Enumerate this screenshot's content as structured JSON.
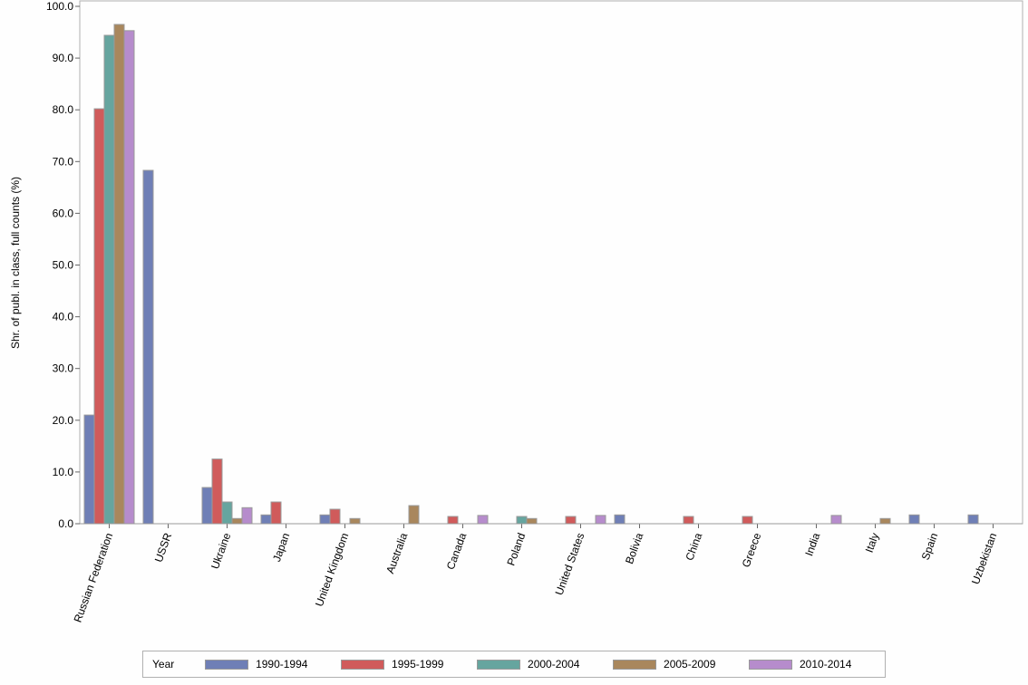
{
  "chart_data": {
    "type": "bar",
    "title": "",
    "xlabel": "",
    "ylabel": "Shr. of publ. in class, full counts (%)",
    "ylim": [
      0,
      100
    ],
    "yticks": [
      "0.0",
      "10.0",
      "20.0",
      "30.0",
      "40.0",
      "50.0",
      "60.0",
      "70.0",
      "80.0",
      "90.0",
      "100.0"
    ],
    "categories": [
      "Russian Federation",
      "USSR",
      "Ukraine",
      "Japan",
      "United Kingdom",
      "Australia",
      "Canada",
      "Poland",
      "United States",
      "Bolivia",
      "China",
      "Greece",
      "India",
      "Italy",
      "Spain",
      "Uzbekistan"
    ],
    "legend_title": "Year",
    "legend_position": "bottom",
    "series": [
      {
        "name": "1990-1994",
        "color": "#6f7fb6",
        "values": [
          21.0,
          68.3,
          7.0,
          1.7,
          1.7,
          0,
          0,
          0,
          0,
          1.7,
          0,
          0,
          0,
          0,
          1.7,
          1.7
        ]
      },
      {
        "name": "1995-1999",
        "color": "#d05b5b",
        "values": [
          80.2,
          0,
          12.5,
          4.2,
          2.8,
          0,
          1.4,
          0,
          1.4,
          0,
          1.4,
          1.4,
          0,
          0,
          0,
          0
        ]
      },
      {
        "name": "2000-2004",
        "color": "#66a59f",
        "values": [
          94.4,
          0,
          4.2,
          0,
          0,
          0,
          0,
          1.4,
          0,
          0,
          0,
          0,
          0,
          0,
          0,
          0
        ]
      },
      {
        "name": "2005-2009",
        "color": "#a9875d",
        "values": [
          96.5,
          0,
          1.0,
          0,
          1.0,
          3.5,
          0,
          1.0,
          0,
          0,
          0,
          0,
          0,
          1.0,
          0,
          0
        ]
      },
      {
        "name": "2010-2014",
        "color": "#b68ccc",
        "values": [
          95.3,
          0,
          3.1,
          0,
          0,
          0,
          1.6,
          0,
          1.6,
          0,
          0,
          0,
          1.6,
          0,
          0,
          0
        ]
      }
    ]
  }
}
